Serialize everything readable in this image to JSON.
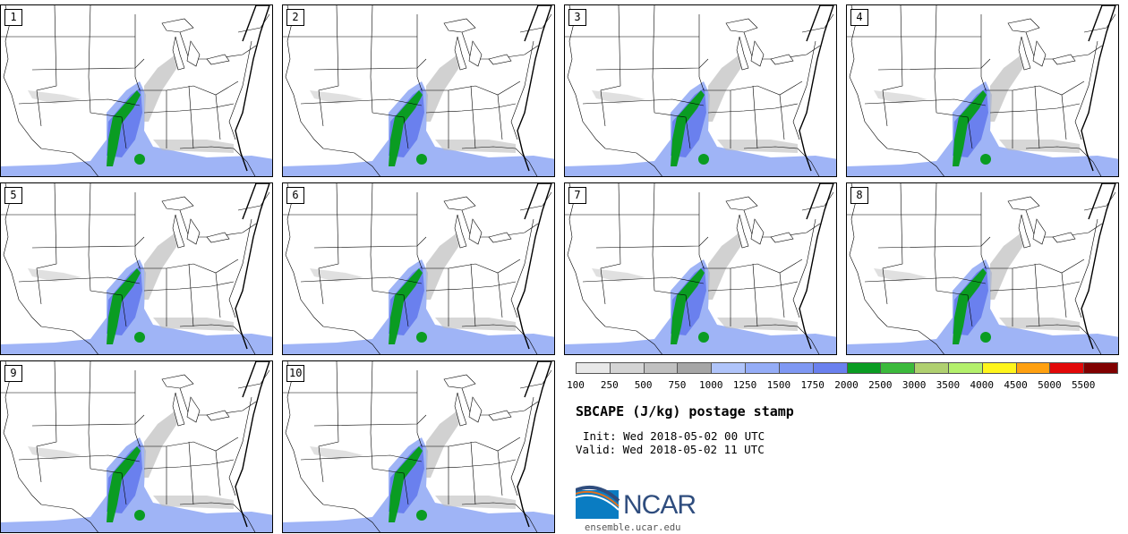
{
  "panels": [
    {
      "label": "1"
    },
    {
      "label": "2"
    },
    {
      "label": "3"
    },
    {
      "label": "4"
    },
    {
      "label": "5"
    },
    {
      "label": "6"
    },
    {
      "label": "7"
    },
    {
      "label": "8"
    },
    {
      "label": "9"
    },
    {
      "label": "10"
    }
  ],
  "colorbar": {
    "colors": [
      "#e8e8e8",
      "#d4d4d4",
      "#c0c0c0",
      "#a6a6a6",
      "#b0c4fa",
      "#95adf7",
      "#7f98f3",
      "#6a80ee",
      "#0a9c22",
      "#3cba3c",
      "#b0d070",
      "#b4f06c",
      "#fff51c",
      "#ffa010",
      "#e20808",
      "#800000"
    ],
    "ticks": [
      "100",
      "250",
      "500",
      "750",
      "1000",
      "1250",
      "1500",
      "1750",
      "2000",
      "2500",
      "3000",
      "3500",
      "4000",
      "4500",
      "5000",
      "5500"
    ]
  },
  "title": "SBCAPE (J/kg) postage stamp",
  "init": "Init: Wed 2018-05-02 00 UTC",
  "valid": "Valid: Wed 2018-05-02 11 UTC",
  "logo": {
    "text": "NCAR",
    "site": "ensemble.ucar.edu",
    "colors": {
      "blue": "#2f4d7e",
      "orange": "#e07020",
      "light": "#0a7cc2"
    }
  }
}
